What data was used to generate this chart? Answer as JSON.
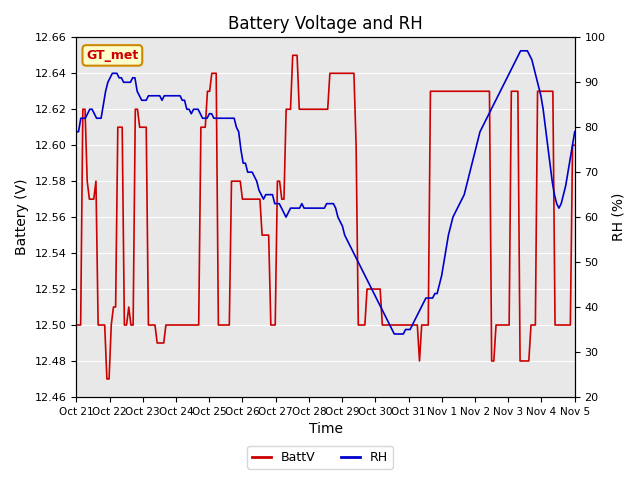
{
  "title": "Battery Voltage and RH",
  "xlabel": "Time",
  "ylabel_left": "Battery (V)",
  "ylabel_right": "RH (%)",
  "annotation": "GT_met",
  "ylim_left": [
    12.46,
    12.66
  ],
  "ylim_right": [
    20,
    100
  ],
  "yticks_left": [
    12.46,
    12.48,
    12.5,
    12.52,
    12.54,
    12.56,
    12.58,
    12.6,
    12.62,
    12.64,
    12.66
  ],
  "yticks_right": [
    20,
    30,
    40,
    50,
    60,
    70,
    80,
    90,
    100
  ],
  "xtick_labels": [
    "Oct 21",
    "Oct 22",
    "Oct 23",
    "Oct 24",
    "Oct 25",
    "Oct 26",
    "Oct 27",
    "Oct 28",
    "Oct 29",
    "Oct 30",
    "Oct 31",
    "Nov 1",
    "Nov 2",
    "Nov 3",
    "Nov 4",
    "Nov 5"
  ],
  "color_battv": "#cc0000",
  "color_rh": "#0000cc",
  "bg_color": "#e8e8e8",
  "legend_battv": "BattV",
  "legend_rh": "RH",
  "battv": [
    12.5,
    12.5,
    12.5,
    12.62,
    12.62,
    12.58,
    12.57,
    12.57,
    12.57,
    12.58,
    12.5,
    12.5,
    12.5,
    12.5,
    12.47,
    12.47,
    12.5,
    12.51,
    12.51,
    12.61,
    12.61,
    12.61,
    12.5,
    12.5,
    12.51,
    12.5,
    12.5,
    12.62,
    12.62,
    12.61,
    12.61,
    12.61,
    12.61,
    12.5,
    12.5,
    12.5,
    12.5,
    12.49,
    12.49,
    12.49,
    12.49,
    12.5,
    12.5,
    12.5,
    12.5,
    12.5,
    12.5,
    12.5,
    12.5,
    12.5,
    12.5,
    12.5,
    12.5,
    12.5,
    12.5,
    12.5,
    12.5,
    12.61,
    12.61,
    12.61,
    12.63,
    12.63,
    12.64,
    12.64,
    12.64,
    12.5,
    12.5,
    12.5,
    12.5,
    12.5,
    12.5,
    12.58,
    12.58,
    12.58,
    12.58,
    12.58,
    12.57,
    12.57,
    12.57,
    12.57,
    12.57,
    12.57,
    12.57,
    12.57,
    12.57,
    12.55,
    12.55,
    12.55,
    12.55,
    12.5,
    12.5,
    12.5,
    12.58,
    12.58,
    12.57,
    12.57,
    12.62,
    12.62,
    12.62,
    12.65,
    12.65,
    12.65,
    12.62,
    12.62,
    12.62,
    12.62,
    12.62,
    12.62,
    12.62,
    12.62,
    12.62,
    12.62,
    12.62,
    12.62,
    12.62,
    12.62,
    12.64,
    12.64,
    12.64,
    12.64,
    12.64,
    12.64,
    12.64,
    12.64,
    12.64,
    12.64,
    12.64,
    12.64,
    12.6,
    12.5,
    12.5,
    12.5,
    12.5,
    12.52,
    12.52,
    12.52,
    12.52,
    12.52,
    12.52,
    12.52,
    12.5,
    12.5,
    12.5,
    12.5,
    12.5,
    12.5,
    12.5,
    12.5,
    12.5,
    12.5,
    12.5,
    12.5,
    12.5,
    12.5,
    12.5,
    12.5,
    12.5,
    12.48,
    12.5,
    12.5,
    12.5,
    12.5,
    12.63,
    12.63,
    12.63,
    12.63,
    12.63,
    12.63,
    12.63,
    12.63,
    12.63,
    12.63,
    12.63,
    12.63,
    12.63,
    12.63,
    12.63,
    12.63,
    12.63,
    12.63,
    12.63,
    12.63,
    12.63,
    12.63,
    12.63,
    12.63,
    12.63,
    12.63,
    12.63,
    12.63,
    12.48,
    12.48,
    12.5,
    12.5,
    12.5,
    12.5,
    12.5,
    12.5,
    12.5,
    12.63,
    12.63,
    12.63,
    12.63,
    12.48,
    12.48,
    12.48,
    12.48,
    12.48,
    12.5,
    12.5,
    12.5,
    12.63,
    12.63,
    12.63,
    12.63,
    12.63,
    12.63,
    12.63,
    12.63,
    12.5,
    12.5,
    12.5,
    12.5,
    12.5,
    12.5,
    12.5,
    12.5,
    12.6,
    12.6
  ],
  "rh": [
    79,
    79,
    82,
    82,
    82,
    83,
    84,
    84,
    83,
    82,
    82,
    82,
    85,
    88,
    90,
    91,
    92,
    92,
    92,
    91,
    91,
    90,
    90,
    90,
    90,
    91,
    91,
    88,
    87,
    86,
    86,
    86,
    87,
    87,
    87,
    87,
    87,
    87,
    86,
    87,
    87,
    87,
    87,
    87,
    87,
    87,
    87,
    86,
    86,
    84,
    84,
    83,
    84,
    84,
    84,
    83,
    82,
    82,
    82,
    83,
    83,
    82,
    82,
    82,
    82,
    82,
    82,
    82,
    82,
    82,
    82,
    80,
    79,
    75,
    72,
    72,
    70,
    70,
    70,
    69,
    68,
    66,
    65,
    64,
    65,
    65,
    65,
    65,
    63,
    63,
    63,
    62,
    61,
    60,
    61,
    62,
    62,
    62,
    62,
    62,
    63,
    62,
    62,
    62,
    62,
    62,
    62,
    62,
    62,
    62,
    62,
    63,
    63,
    63,
    63,
    62,
    60,
    59,
    58,
    56,
    55,
    54,
    53,
    52,
    51,
    50,
    49,
    48,
    47,
    46,
    45,
    44,
    43,
    42,
    41,
    40,
    39,
    38,
    37,
    36,
    35,
    34,
    34,
    34,
    34,
    34,
    35,
    35,
    35,
    36,
    37,
    38,
    39,
    40,
    41,
    42,
    42,
    42,
    42,
    43,
    43,
    45,
    47,
    50,
    53,
    56,
    58,
    60,
    61,
    62,
    63,
    64,
    65,
    67,
    69,
    71,
    73,
    75,
    77,
    79,
    80,
    81,
    82,
    83,
    84,
    85,
    86,
    87,
    88,
    89,
    90,
    91,
    92,
    93,
    94,
    95,
    96,
    97,
    97,
    97,
    97,
    96,
    95,
    93,
    91,
    89,
    87,
    84,
    80,
    76,
    72,
    68,
    65,
    63,
    62,
    63,
    65,
    67,
    70,
    73,
    76,
    79
  ]
}
